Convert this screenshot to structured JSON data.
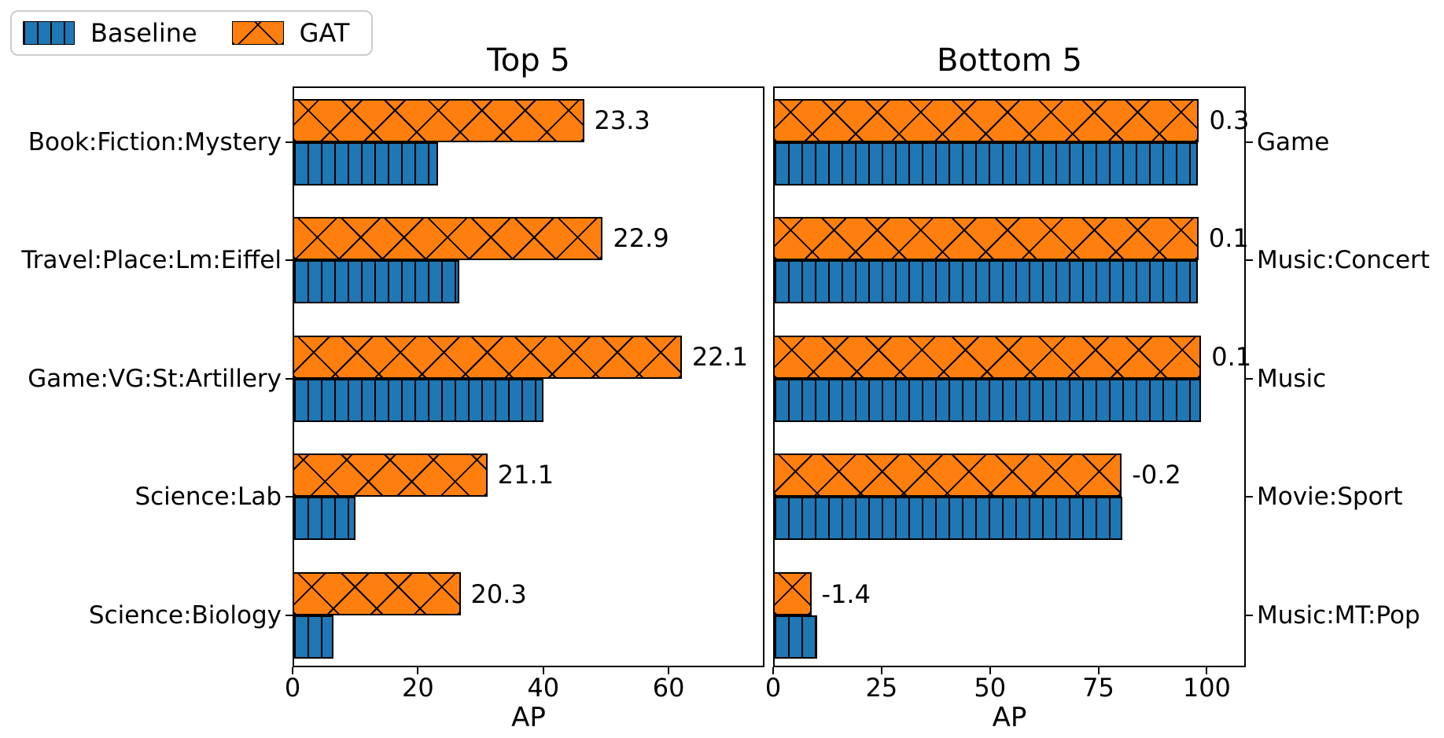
{
  "colors": {
    "baseline": "#1f77b4",
    "gat": "#ff7f0e",
    "text": "#000000",
    "legend_border": "#cccccc"
  },
  "legend": {
    "items": [
      {
        "label": "Baseline",
        "swatch": "blue-vertical-hatch-swatch",
        "hatch": "vertical"
      },
      {
        "label": "GAT",
        "swatch": "orange-cross-hatch-swatch",
        "hatch": "cross"
      }
    ]
  },
  "chart_data": [
    {
      "type": "bar",
      "orientation": "horizontal",
      "title": "Top 5",
      "xlabel": "AP",
      "xticks": [
        0,
        20,
        40,
        60
      ],
      "xlim": [
        0,
        75.3
      ],
      "label_side": "left",
      "categories": [
        "Book:Fiction:Mystery",
        "Travel:Place:Lm:Eiffel",
        "Game:VG:St:Artillery",
        "Science:Lab",
        "Science:Biology"
      ],
      "series": [
        {
          "name": "Baseline",
          "values": [
            23.2,
            26.6,
            40.0,
            10.0,
            6.5
          ]
        },
        {
          "name": "GAT",
          "values": [
            46.5,
            49.5,
            62.1,
            31.1,
            26.8
          ]
        }
      ],
      "annotations": [
        "23.3",
        "22.9",
        "22.1",
        "21.1",
        "20.3"
      ],
      "legend_position": "upper-left-outside",
      "grid": false
    },
    {
      "type": "bar",
      "orientation": "horizontal",
      "title": "Bottom 5",
      "xlabel": "AP",
      "xticks": [
        0,
        25,
        50,
        75,
        100
      ],
      "xlim": [
        0,
        109
      ],
      "label_side": "right",
      "categories": [
        "Game",
        "Music:Concert",
        "Music",
        "Movie:Sport",
        "Music:MT:Pop"
      ],
      "series": [
        {
          "name": "Baseline",
          "values": [
            97.9,
            98.0,
            98.6,
            80.6,
            10.2
          ]
        },
        {
          "name": "GAT",
          "values": [
            98.2,
            98.1,
            98.7,
            80.4,
            8.8
          ]
        }
      ],
      "annotations": [
        "0.3",
        "0.1",
        "0.1",
        "-0.2",
        "-1.4"
      ],
      "grid": false
    }
  ]
}
